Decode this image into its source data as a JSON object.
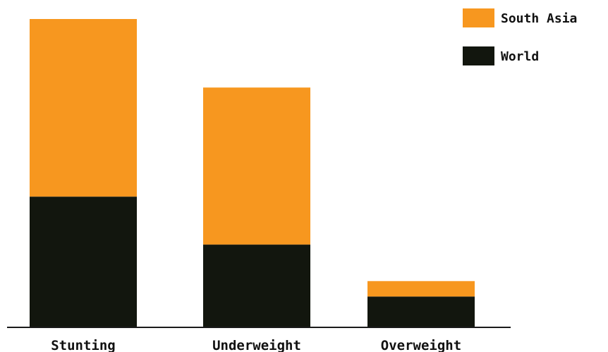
{
  "chart_data": {
    "type": "bar",
    "stacked": true,
    "title": "",
    "xlabel": "",
    "ylabel": "",
    "categories": [
      "Stunting",
      "Underweight",
      "Overweight"
    ],
    "series": [
      {
        "name": "World",
        "color": "#12160e",
        "values": [
          22.9,
          14.5,
          5.4
        ]
      },
      {
        "name": "South Asia",
        "color": "#f7971f",
        "values": [
          31.1,
          27.5,
          2.7
        ]
      }
    ],
    "ylim": [
      0,
      54
    ],
    "grid": false,
    "legend": "top-right"
  }
}
